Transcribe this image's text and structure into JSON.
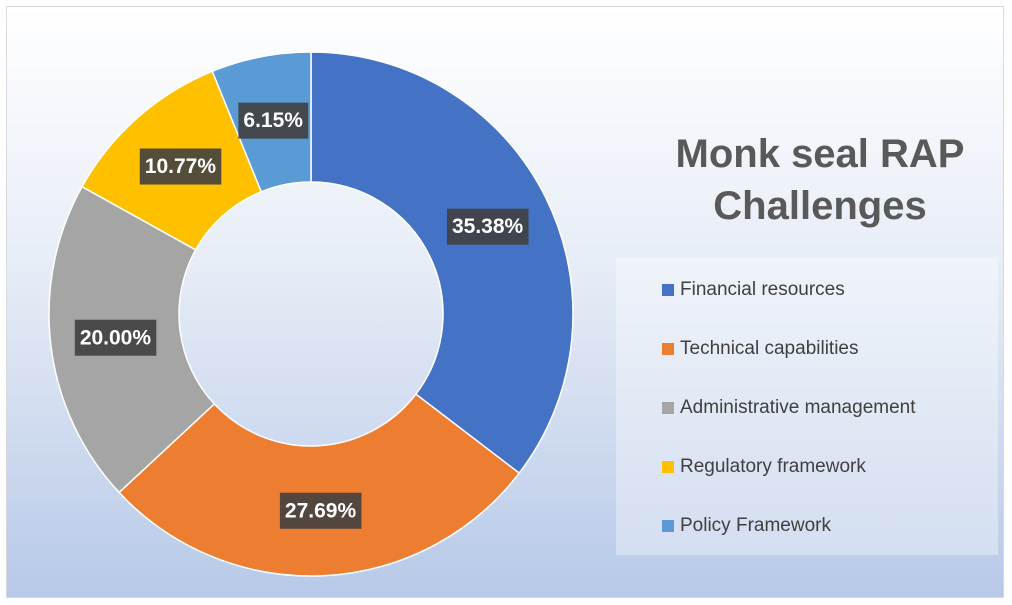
{
  "chart_data": {
    "type": "donut",
    "title": "Monk seal RAP Challenges",
    "categories": [
      "Financial resources",
      "Technical capabilities",
      "Administrative management",
      "Regulatory framework",
      "Policy Framework"
    ],
    "values": [
      35.38,
      27.69,
      20.0,
      10.77,
      6.15
    ],
    "value_labels": [
      "35.38%",
      "27.69%",
      "20.00%",
      "10.77%",
      "6.15%"
    ],
    "colors": [
      "#4472c4",
      "#ed7d31",
      "#a5a5a5",
      "#ffc000",
      "#5b9bd5"
    ],
    "legend": "right"
  }
}
